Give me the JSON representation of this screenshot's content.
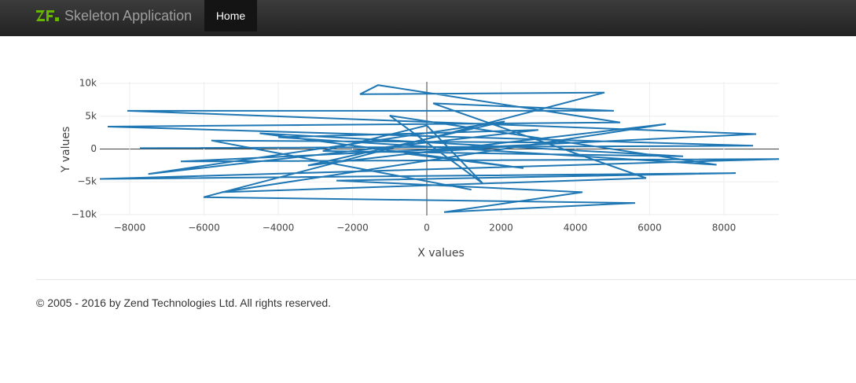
{
  "navbar": {
    "brand": "Skeleton Application",
    "items": [
      "Home"
    ]
  },
  "chart_data": {
    "type": "line",
    "x_label": "X values",
    "y_label": "Y values",
    "series": [
      {
        "color": "#1f77b4",
        "x": [
          -7725,
          8783,
          -8593,
          5206,
          -1312,
          -1799,
          4783,
          -6011,
          5608,
          466,
          4190,
          -2434,
          8317,
          -8804,
          9481,
          -6624,
          8868,
          -8063,
          5037,
          169,
          5905,
          -5524,
          6434,
          -3200,
          2100,
          -7500,
          3000,
          -4000,
          7800,
          -1000,
          1500,
          0,
          -2800,
          6900,
          -4500,
          2600,
          -600,
          3800,
          -5800,
          1200
        ],
        "values": [
          127,
          506,
          3418,
          4051,
          9747,
          8354,
          8608,
          -7342,
          -8228,
          -9620,
          -6582,
          -4810,
          -3671,
          -4557,
          -1519,
          -1899,
          2278,
          5823,
          5823,
          6962,
          -4430,
          -6582,
          3797,
          -2500,
          4200,
          -3800,
          2900,
          1800,
          -2400,
          5100,
          -5200,
          3600,
          -300,
          -1100,
          2400,
          -2900,
          -700,
          1000,
          1300,
          -6200
        ]
      }
    ],
    "xlim": [
      -8804,
      9481
    ],
    "ylim": [
      -10130,
      10250
    ],
    "xticks": [
      {
        "value": -8000,
        "label": "−8000"
      },
      {
        "value": -6000,
        "label": "−6000"
      },
      {
        "value": -4000,
        "label": "−4000"
      },
      {
        "value": -2000,
        "label": "−2000"
      },
      0,
      2000,
      4000,
      6000,
      8000
    ],
    "yticks": [
      {
        "value": -10000,
        "label": "−10k"
      },
      {
        "value": -5000,
        "label": "−5k"
      },
      0,
      {
        "value": 5000,
        "label": "5k"
      },
      {
        "value": 10000,
        "label": "10k"
      }
    ],
    "grid": true,
    "zeroline": true
  },
  "footer": {
    "text": "© 2005 - 2016 by Zend Technologies Ltd. All rights reserved."
  }
}
